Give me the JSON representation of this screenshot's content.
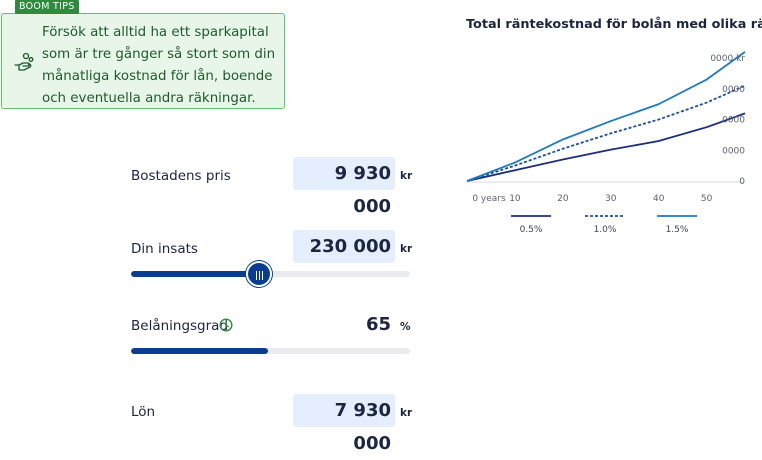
{
  "tip": {
    "badge": "BOOM TIPS",
    "icon": "hand-coins-icon",
    "text": "Försök att alltid ha ett sparkapital som är tre gånger så stort som din månatliga kostnad för lån, boende och eventuella andra räkningar."
  },
  "form": {
    "price": {
      "label": "Bostadens pris",
      "value": "9 930 000",
      "unit": "kr"
    },
    "deposit": {
      "label": "Din insats",
      "value": "230 000",
      "unit": "kr",
      "slider_fraction": 0.46
    },
    "ltv": {
      "label": "Belåningsgrad",
      "value": "65",
      "unit": "%",
      "info_icon": "clock-info-icon",
      "bar_fraction": 0.49
    },
    "salary": {
      "label": "Lön",
      "value": "7 930 000",
      "unit": "kr"
    }
  },
  "colors": {
    "tip_bg": "#e7f6e9",
    "tip_border": "#62c172",
    "tip_badge": "#2e8b3d",
    "input_bg": "#e5eefc",
    "slider": "#0a3d8f"
  },
  "chart_data": {
    "type": "line",
    "title": "Total räntekostnad för bolån med olika räntor",
    "x": [
      0,
      10,
      20,
      30,
      40,
      50,
      58
    ],
    "x_tick_values": [
      0,
      10,
      20,
      30,
      40,
      50
    ],
    "x_tick_labels": [
      "0 years",
      "10",
      "20",
      "30",
      "40",
      "50"
    ],
    "xlim": [
      0,
      58
    ],
    "ylim": [
      0,
      4
    ],
    "y_tick_values": [
      0,
      1,
      2,
      3,
      4
    ],
    "y_tick_labels": [
      "0",
      "0000",
      "0000",
      "0000",
      "0000 kr"
    ],
    "grid": false,
    "legend_position": "bottom",
    "series": [
      {
        "name": "0.5%",
        "color": "#1b2f7a",
        "dash": "solid",
        "values": [
          0,
          0.35,
          0.7,
          1.02,
          1.3,
          1.75,
          2.2
        ]
      },
      {
        "name": "1.0%",
        "color": "#1b4fa0",
        "dash": "dashed",
        "values": [
          0,
          0.5,
          1.05,
          1.55,
          2.0,
          2.55,
          3.1
        ]
      },
      {
        "name": "1.5%",
        "color": "#1f7ac0",
        "dash": "solid",
        "values": [
          0,
          0.6,
          1.35,
          1.95,
          2.5,
          3.3,
          4.2
        ]
      }
    ]
  }
}
